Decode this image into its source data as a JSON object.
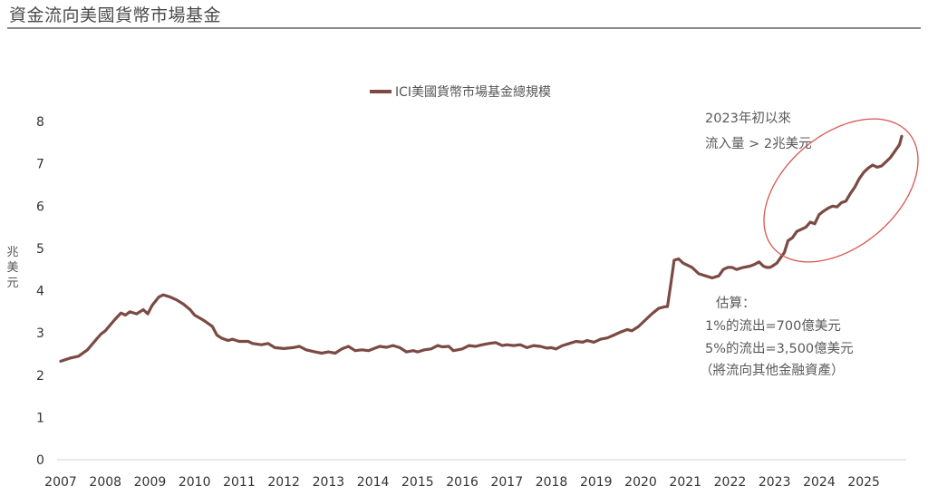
{
  "page": {
    "title": "資金流向美國貨幣市場基金"
  },
  "colors": {
    "line": "#7b4a43",
    "ellipse": "#d9534f",
    "axis": "#d0d0d0",
    "title_rule": "#8a8a8a"
  },
  "chart_data": {
    "type": "line",
    "title": "",
    "legend": {
      "position": "top",
      "entries": [
        "ICI美國貨幣市場基金總規模"
      ]
    },
    "xlabel": "",
    "ylabel": "兆美元",
    "ylim": [
      0,
      8
    ],
    "xlim": [
      2007,
      2025.85
    ],
    "grid": false,
    "x_ticks": [
      "2007",
      "2008",
      "2009",
      "2010",
      "2011",
      "2012",
      "2013",
      "2014",
      "2015",
      "2016",
      "2017",
      "2018",
      "2019",
      "2020",
      "2021",
      "2022",
      "2023",
      "2024",
      "2025"
    ],
    "y_ticks": [
      "0",
      "1",
      "2",
      "3",
      "4",
      "5",
      "6",
      "7",
      "8"
    ],
    "series": [
      {
        "name": "ICI美國貨幣市場基金總規模",
        "color": "#7b4a43",
        "points": [
          [
            2007.0,
            2.33
          ],
          [
            2007.2,
            2.4
          ],
          [
            2007.4,
            2.45
          ],
          [
            2007.6,
            2.6
          ],
          [
            2007.8,
            2.85
          ],
          [
            2007.9,
            2.97
          ],
          [
            2008.0,
            3.05
          ],
          [
            2008.2,
            3.3
          ],
          [
            2008.35,
            3.47
          ],
          [
            2008.45,
            3.42
          ],
          [
            2008.55,
            3.5
          ],
          [
            2008.7,
            3.45
          ],
          [
            2008.85,
            3.55
          ],
          [
            2008.95,
            3.45
          ],
          [
            2009.05,
            3.65
          ],
          [
            2009.2,
            3.85
          ],
          [
            2009.3,
            3.9
          ],
          [
            2009.45,
            3.85
          ],
          [
            2009.6,
            3.78
          ],
          [
            2009.75,
            3.68
          ],
          [
            2009.9,
            3.55
          ],
          [
            2010.0,
            3.42
          ],
          [
            2010.2,
            3.3
          ],
          [
            2010.4,
            3.15
          ],
          [
            2010.5,
            2.95
          ],
          [
            2010.6,
            2.88
          ],
          [
            2010.75,
            2.82
          ],
          [
            2010.85,
            2.85
          ],
          [
            2011.0,
            2.8
          ],
          [
            2011.2,
            2.8
          ],
          [
            2011.3,
            2.75
          ],
          [
            2011.5,
            2.72
          ],
          [
            2011.65,
            2.75
          ],
          [
            2011.8,
            2.65
          ],
          [
            2012.0,
            2.63
          ],
          [
            2012.2,
            2.65
          ],
          [
            2012.35,
            2.68
          ],
          [
            2012.5,
            2.6
          ],
          [
            2012.7,
            2.55
          ],
          [
            2012.85,
            2.52
          ],
          [
            2013.0,
            2.55
          ],
          [
            2013.15,
            2.52
          ],
          [
            2013.3,
            2.62
          ],
          [
            2013.45,
            2.68
          ],
          [
            2013.6,
            2.58
          ],
          [
            2013.75,
            2.6
          ],
          [
            2013.9,
            2.58
          ],
          [
            2014.0,
            2.62
          ],
          [
            2014.15,
            2.68
          ],
          [
            2014.3,
            2.66
          ],
          [
            2014.45,
            2.7
          ],
          [
            2014.6,
            2.65
          ],
          [
            2014.75,
            2.55
          ],
          [
            2014.9,
            2.58
          ],
          [
            2015.0,
            2.55
          ],
          [
            2015.15,
            2.6
          ],
          [
            2015.3,
            2.62
          ],
          [
            2015.45,
            2.7
          ],
          [
            2015.55,
            2.67
          ],
          [
            2015.7,
            2.68
          ],
          [
            2015.8,
            2.58
          ],
          [
            2015.9,
            2.6
          ],
          [
            2016.0,
            2.62
          ],
          [
            2016.15,
            2.7
          ],
          [
            2016.3,
            2.68
          ],
          [
            2016.45,
            2.72
          ],
          [
            2016.6,
            2.75
          ],
          [
            2016.75,
            2.77
          ],
          [
            2016.9,
            2.7
          ],
          [
            2017.0,
            2.72
          ],
          [
            2017.15,
            2.7
          ],
          [
            2017.3,
            2.72
          ],
          [
            2017.45,
            2.65
          ],
          [
            2017.6,
            2.7
          ],
          [
            2017.75,
            2.68
          ],
          [
            2017.9,
            2.64
          ],
          [
            2018.0,
            2.65
          ],
          [
            2018.1,
            2.62
          ],
          [
            2018.25,
            2.7
          ],
          [
            2018.4,
            2.75
          ],
          [
            2018.55,
            2.8
          ],
          [
            2018.7,
            2.78
          ],
          [
            2018.8,
            2.82
          ],
          [
            2018.95,
            2.78
          ],
          [
            2019.1,
            2.85
          ],
          [
            2019.25,
            2.88
          ],
          [
            2019.4,
            2.95
          ],
          [
            2019.55,
            3.02
          ],
          [
            2019.7,
            3.08
          ],
          [
            2019.8,
            3.05
          ],
          [
            2019.95,
            3.15
          ],
          [
            2020.1,
            3.3
          ],
          [
            2020.25,
            3.45
          ],
          [
            2020.4,
            3.58
          ],
          [
            2020.55,
            3.62
          ],
          [
            2020.6,
            3.62
          ],
          [
            2020.68,
            4.2
          ],
          [
            2020.75,
            4.72
          ],
          [
            2020.85,
            4.75
          ],
          [
            2020.95,
            4.65
          ],
          [
            2021.05,
            4.6
          ],
          [
            2021.15,
            4.55
          ],
          [
            2021.3,
            4.4
          ],
          [
            2021.45,
            4.35
          ],
          [
            2021.6,
            4.3
          ],
          [
            2021.75,
            4.35
          ],
          [
            2021.85,
            4.5
          ],
          [
            2021.95,
            4.55
          ],
          [
            2022.05,
            4.55
          ],
          [
            2022.15,
            4.5
          ],
          [
            2022.3,
            4.55
          ],
          [
            2022.45,
            4.58
          ],
          [
            2022.55,
            4.62
          ],
          [
            2022.65,
            4.68
          ],
          [
            2022.75,
            4.58
          ],
          [
            2022.82,
            4.55
          ],
          [
            2022.9,
            4.55
          ],
          [
            2022.95,
            4.58
          ],
          [
            2023.05,
            4.65
          ],
          [
            2023.15,
            4.8
          ],
          [
            2023.22,
            4.9
          ],
          [
            2023.3,
            5.18
          ],
          [
            2023.4,
            5.25
          ],
          [
            2023.5,
            5.4
          ],
          [
            2023.6,
            5.45
          ],
          [
            2023.7,
            5.5
          ],
          [
            2023.8,
            5.62
          ],
          [
            2023.9,
            5.58
          ],
          [
            2024.0,
            5.8
          ],
          [
            2024.1,
            5.88
          ],
          [
            2024.2,
            5.95
          ],
          [
            2024.3,
            6.0
          ],
          [
            2024.4,
            5.98
          ],
          [
            2024.5,
            6.08
          ],
          [
            2024.6,
            6.12
          ],
          [
            2024.7,
            6.3
          ],
          [
            2024.8,
            6.45
          ],
          [
            2024.9,
            6.65
          ],
          [
            2025.0,
            6.8
          ],
          [
            2025.1,
            6.9
          ],
          [
            2025.2,
            6.97
          ],
          [
            2025.3,
            6.92
          ],
          [
            2025.4,
            6.95
          ],
          [
            2025.5,
            7.05
          ],
          [
            2025.6,
            7.15
          ],
          [
            2025.7,
            7.3
          ],
          [
            2025.8,
            7.45
          ],
          [
            2025.85,
            7.65
          ]
        ]
      }
    ],
    "annotations": {
      "highlight": {
        "label_lines": [
          "2023年初以來",
          "流入量 > 2兆美元"
        ]
      },
      "estimate": {
        "lines": [
          "估算：",
          "1%的流出=700億美元",
          "5%的流出=3,500億美元",
          "（將流向其他金融資產）"
        ]
      }
    }
  }
}
